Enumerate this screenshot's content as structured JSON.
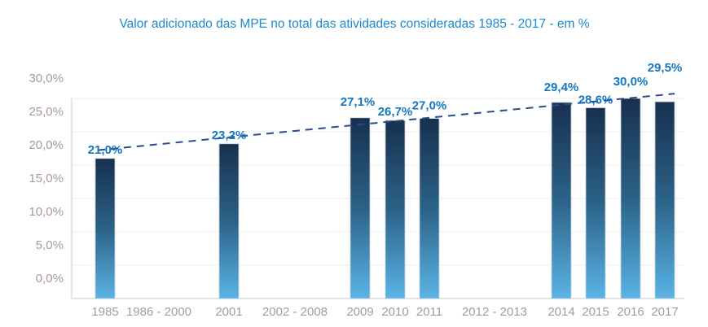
{
  "chart_data": {
    "type": "bar",
    "title": "Valor adicionado das MPE no total das atividades consideradas 1985 - 2017 - em %",
    "xlabel": "",
    "ylabel": "",
    "y_tick_labels": [
      "0,0%",
      "5,0%",
      "10,0%",
      "15,0%",
      "20,0%",
      "25,0%",
      "30,0%"
    ],
    "ylim": [
      0,
      30
    ],
    "grid": true,
    "categories": [
      "1985",
      "1986 - 2000",
      "2001",
      "2002 - 2008",
      "2009",
      "2010",
      "2011",
      "2012 - 2013",
      "2014",
      "2015",
      "2016",
      "2017"
    ],
    "values": [
      21.0,
      null,
      23.2,
      null,
      27.1,
      26.7,
      27.0,
      null,
      29.4,
      28.6,
      30.0,
      29.5
    ],
    "data_labels": [
      "21,0%",
      "",
      "23,2%",
      "",
      "27,1%",
      "26,7%",
      "27,0%",
      "",
      "29,4%",
      "28,6%",
      "30,0%",
      "29,5%"
    ],
    "trendline": {
      "style": "dashed",
      "type": "linear"
    },
    "colors": {
      "bar_top": "#18304f",
      "bar_bottom": "#5ab4e6",
      "trend": "#2d4b8f",
      "labels": "#1576c0",
      "title": "#1a8ad0"
    }
  }
}
